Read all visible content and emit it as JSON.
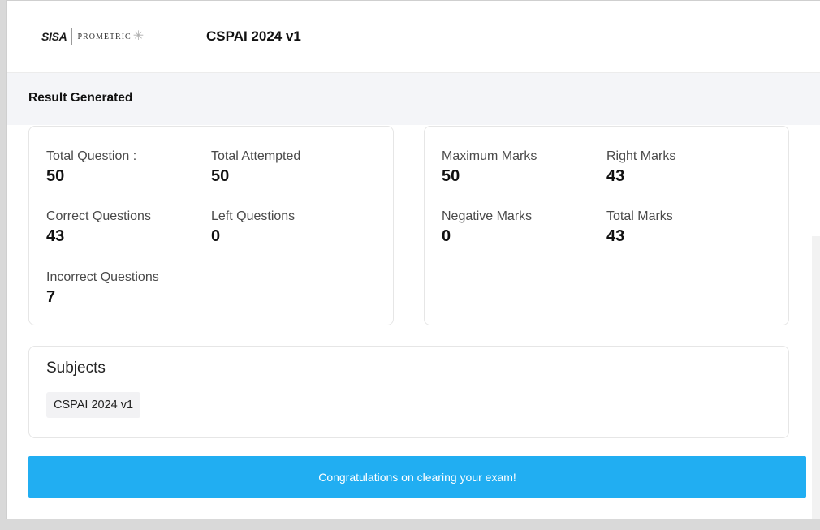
{
  "header": {
    "logo_primary": "SISA",
    "logo_secondary": "PROMETRIC",
    "exam_title": "CSPAI 2024 v1"
  },
  "subheader": {
    "title": "Result Generated"
  },
  "question_stats": {
    "total_question_label": "Total Question :",
    "total_question_value": "50",
    "total_attempted_label": "Total Attempted",
    "total_attempted_value": "50",
    "correct_questions_label": "Correct Questions",
    "correct_questions_value": "43",
    "left_questions_label": "Left Questions",
    "left_questions_value": "0",
    "incorrect_questions_label": "Incorrect Questions",
    "incorrect_questions_value": "7"
  },
  "marks_stats": {
    "maximum_marks_label": "Maximum Marks",
    "maximum_marks_value": "50",
    "right_marks_label": "Right Marks",
    "right_marks_value": "43",
    "negative_marks_label": "Negative Marks",
    "negative_marks_value": "0",
    "total_marks_label": "Total Marks",
    "total_marks_value": "43"
  },
  "subjects": {
    "title": "Subjects",
    "items": [
      "CSPAI 2024 v1"
    ]
  },
  "banner": {
    "message": "Congratulations on clearing your exam!"
  },
  "colors": {
    "banner_bg": "#21aef2",
    "subheader_bg": "#f4f5f8"
  }
}
